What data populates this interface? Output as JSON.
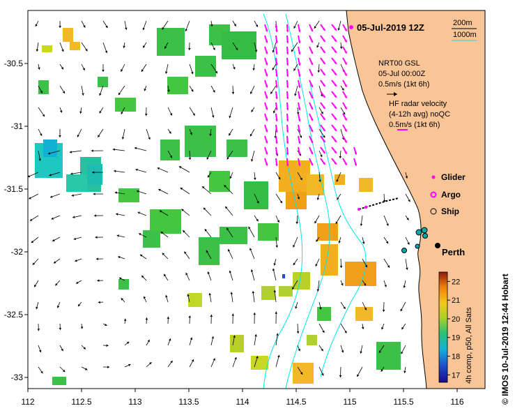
{
  "map": {
    "title": "05-Jul-2019 12Z",
    "lon_ticks": [
      "112",
      "112.5",
      "113",
      "113.5",
      "114",
      "114.5",
      "115",
      "115.5",
      "116"
    ],
    "lat_ticks": [
      "-30.5",
      "-31",
      "-31.5",
      "-32",
      "-32.5",
      "-33"
    ],
    "isobath_legend": [
      "200m",
      "1000m"
    ],
    "model_label": [
      "NRT00 GSL",
      "05-Jul 00:00Z",
      "0.5m/s (1kt 6h)"
    ],
    "hf_label": [
      "HF radar velocity",
      "(4-12h avg) noQC",
      "0.5m/s (1kt 6h)"
    ],
    "platform_legend": [
      {
        "symbol": "glider",
        "label": "Glider",
        "color": "#ff00ff"
      },
      {
        "symbol": "argo",
        "label": "Argo",
        "color": "#ff00ff"
      },
      {
        "symbol": "ship",
        "label": "Ship",
        "color": "#000000"
      }
    ],
    "city": "Perth",
    "colorbar": {
      "ticks": [
        "17",
        "18",
        "19",
        "20",
        "21",
        "22"
      ],
      "label": "4h comp, p50, All Sats",
      "range": [
        16.6,
        22.5
      ]
    },
    "credit": "© IMOS 10-Jul-2019 12:44 Hobart",
    "colors": {
      "land": "#f9c496",
      "isobath": "#00e5ee",
      "hf_arrow": "#ff00ff"
    }
  }
}
